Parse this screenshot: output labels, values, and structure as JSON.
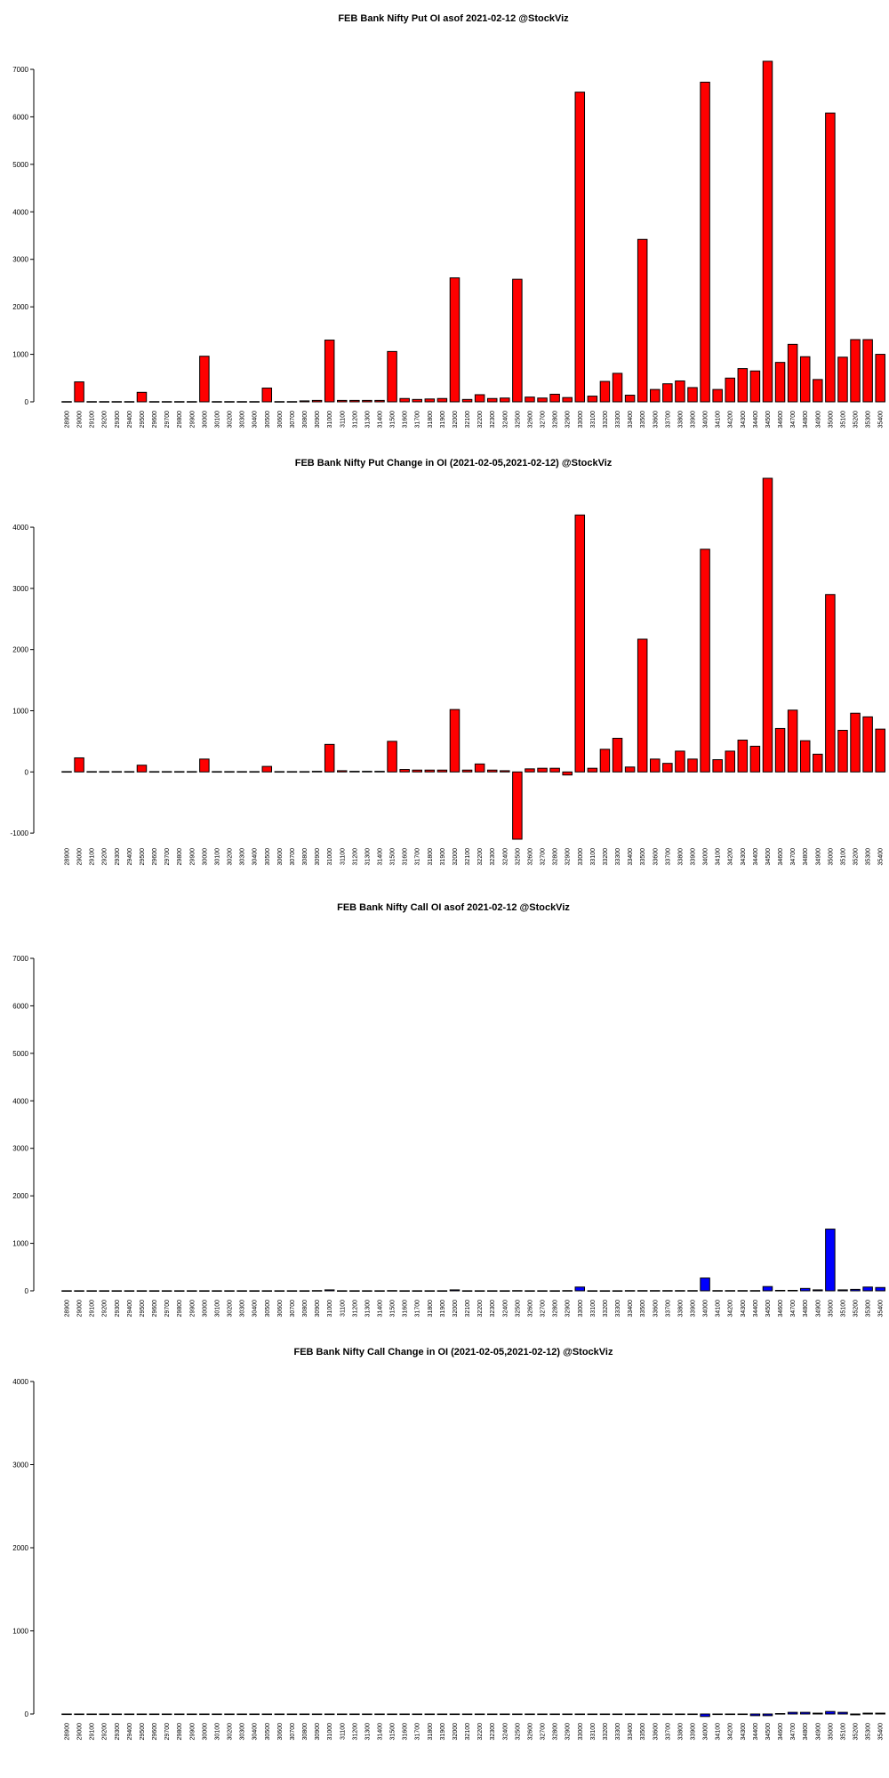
{
  "chart_data": [
    {
      "type": "bar",
      "title": "FEB Bank Nifty Put OI asof 2021-02-12 @StockViz",
      "ylim": [
        0,
        7000
      ],
      "yticks": [
        0,
        1000,
        2000,
        3000,
        4000,
        5000,
        6000,
        7000
      ],
      "color": "#ff0000",
      "categories": [
        "28900",
        "29000",
        "29100",
        "29200",
        "29300",
        "29400",
        "29500",
        "29600",
        "29700",
        "29800",
        "29900",
        "30000",
        "30100",
        "30200",
        "30300",
        "30400",
        "30500",
        "30600",
        "30700",
        "30800",
        "30900",
        "31000",
        "31100",
        "31200",
        "31300",
        "31400",
        "31500",
        "31600",
        "31700",
        "31800",
        "31900",
        "32000",
        "32100",
        "32200",
        "32300",
        "32400",
        "32500",
        "32600",
        "32700",
        "32800",
        "32900",
        "33000",
        "33100",
        "33200",
        "33300",
        "33400",
        "33500",
        "33600",
        "33700",
        "33800",
        "33900",
        "34000",
        "34100",
        "34200",
        "34300",
        "34400",
        "34500",
        "34600",
        "34700",
        "34800",
        "34900",
        "35000",
        "35100",
        "35200",
        "35300",
        "35400"
      ],
      "values": [
        5,
        420,
        5,
        5,
        5,
        5,
        200,
        5,
        5,
        5,
        5,
        960,
        5,
        5,
        5,
        5,
        290,
        5,
        5,
        20,
        30,
        1300,
        30,
        30,
        30,
        30,
        1060,
        70,
        50,
        60,
        70,
        2610,
        50,
        150,
        70,
        80,
        2580,
        100,
        80,
        160,
        90,
        6520,
        120,
        430,
        600,
        140,
        3420,
        260,
        380,
        440,
        300,
        6730,
        260,
        500,
        700,
        650,
        7170,
        830,
        1210,
        950,
        470,
        6080,
        940,
        1310,
        1310,
        1000
      ]
    },
    {
      "type": "bar",
      "title": "FEB Bank Nifty Put Change in OI (2021-02-05,2021-02-12) @StockViz",
      "ylim": [
        -1100,
        4800
      ],
      "yticks": [
        -1000,
        0,
        1000,
        2000,
        3000,
        4000
      ],
      "color": "#ff0000",
      "categories": [
        "28900",
        "29000",
        "29100",
        "29200",
        "29300",
        "29400",
        "29500",
        "29600",
        "29700",
        "29800",
        "29900",
        "30000",
        "30100",
        "30200",
        "30300",
        "30400",
        "30500",
        "30600",
        "30700",
        "30800",
        "30900",
        "31000",
        "31100",
        "31200",
        "31300",
        "31400",
        "31500",
        "31600",
        "31700",
        "31800",
        "31900",
        "32000",
        "32100",
        "32200",
        "32300",
        "32400",
        "32500",
        "32600",
        "32700",
        "32800",
        "32900",
        "33000",
        "33100",
        "33200",
        "33300",
        "33400",
        "33500",
        "33600",
        "33700",
        "33800",
        "33900",
        "34000",
        "34100",
        "34200",
        "34300",
        "34400",
        "34500",
        "34600",
        "34700",
        "34800",
        "34900",
        "35000",
        "35100",
        "35200",
        "35300",
        "35400"
      ],
      "values": [
        5,
        230,
        5,
        5,
        5,
        5,
        110,
        5,
        5,
        5,
        5,
        210,
        5,
        5,
        5,
        5,
        90,
        5,
        5,
        5,
        10,
        450,
        20,
        10,
        10,
        10,
        500,
        40,
        30,
        30,
        30,
        1020,
        30,
        130,
        30,
        20,
        -1100,
        50,
        60,
        60,
        -50,
        4200,
        60,
        370,
        550,
        80,
        2170,
        210,
        140,
        340,
        210,
        3640,
        200,
        340,
        520,
        420,
        4800,
        710,
        1010,
        510,
        290,
        2900,
        680,
        960,
        900,
        700
      ]
    },
    {
      "type": "bar",
      "title": "FEB Bank Nifty Call OI asof 2021-02-12 @StockViz",
      "ylim": [
        0,
        7000
      ],
      "yticks": [
        0,
        1000,
        2000,
        3000,
        4000,
        5000,
        6000,
        7000
      ],
      "color": "#0000ff",
      "categories": [
        "28900",
        "29000",
        "29100",
        "29200",
        "29300",
        "29400",
        "29500",
        "29600",
        "29700",
        "29800",
        "29900",
        "30000",
        "30100",
        "30200",
        "30300",
        "30400",
        "30500",
        "30600",
        "30700",
        "30800",
        "30900",
        "31000",
        "31100",
        "31200",
        "31300",
        "31400",
        "31500",
        "31600",
        "31700",
        "31800",
        "31900",
        "32000",
        "32100",
        "32200",
        "32300",
        "32400",
        "32500",
        "32600",
        "32700",
        "32800",
        "32900",
        "33000",
        "33100",
        "33200",
        "33300",
        "33400",
        "33500",
        "33600",
        "33700",
        "33800",
        "33900",
        "34000",
        "34100",
        "34200",
        "34300",
        "34400",
        "34500",
        "34600",
        "34700",
        "34800",
        "34900",
        "35000",
        "35100",
        "35200",
        "35300",
        "35400"
      ],
      "values": [
        2,
        2,
        2,
        2,
        2,
        2,
        2,
        2,
        2,
        2,
        2,
        2,
        2,
        2,
        2,
        2,
        2,
        2,
        2,
        2,
        5,
        20,
        2,
        2,
        2,
        2,
        5,
        2,
        2,
        2,
        2,
        20,
        2,
        2,
        2,
        2,
        5,
        2,
        2,
        2,
        5,
        80,
        2,
        2,
        2,
        5,
        5,
        5,
        5,
        5,
        5,
        270,
        5,
        5,
        5,
        5,
        90,
        10,
        10,
        50,
        20,
        1300,
        20,
        30,
        80,
        70
      ]
    },
    {
      "type": "bar",
      "title": "FEB Bank Nifty Call Change in OI (2021-02-05,2021-02-12) @StockViz",
      "ylim": [
        0,
        4000
      ],
      "yticks": [
        0,
        1000,
        2000,
        3000,
        4000
      ],
      "color": "#0000ff",
      "categories": [
        "28900",
        "29000",
        "29100",
        "29200",
        "29300",
        "29400",
        "29500",
        "29600",
        "29700",
        "29800",
        "29900",
        "30000",
        "30100",
        "30200",
        "30300",
        "30400",
        "30500",
        "30600",
        "30700",
        "30800",
        "30900",
        "31000",
        "31100",
        "31200",
        "31300",
        "31400",
        "31500",
        "31600",
        "31700",
        "31800",
        "31900",
        "32000",
        "32100",
        "32200",
        "32300",
        "32400",
        "32500",
        "32600",
        "32700",
        "32800",
        "32900",
        "33000",
        "33100",
        "33200",
        "33300",
        "33400",
        "33500",
        "33600",
        "33700",
        "33800",
        "33900",
        "34000",
        "34100",
        "34200",
        "34300",
        "34400",
        "34500",
        "34600",
        "34700",
        "34800",
        "34900",
        "35000",
        "35100",
        "35200",
        "35300",
        "35400"
      ],
      "values": [
        0,
        0,
        0,
        0,
        0,
        0,
        0,
        0,
        0,
        0,
        0,
        0,
        0,
        0,
        0,
        0,
        0,
        0,
        0,
        0,
        0,
        0,
        0,
        0,
        0,
        0,
        0,
        0,
        0,
        0,
        0,
        0,
        0,
        0,
        0,
        0,
        0,
        0,
        0,
        0,
        0,
        0,
        0,
        0,
        0,
        0,
        0,
        0,
        0,
        0,
        0,
        -30,
        0,
        0,
        0,
        -20,
        -20,
        5,
        20,
        20,
        10,
        30,
        20,
        -10,
        10,
        10
      ]
    }
  ]
}
